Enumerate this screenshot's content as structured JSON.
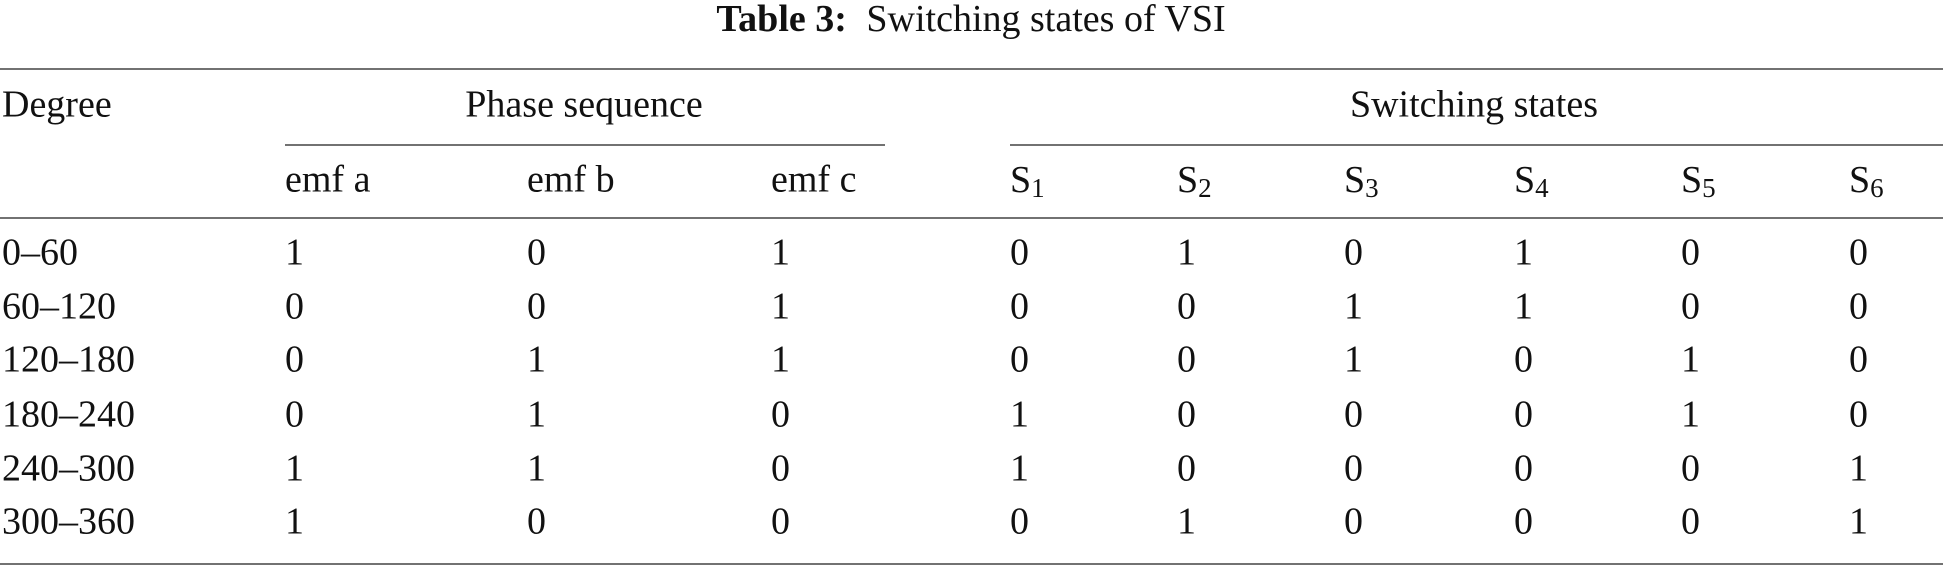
{
  "caption": {
    "label": "Table 3:",
    "text": "Switching states of VSI"
  },
  "table": {
    "group_headers": {
      "degree": "Degree",
      "phase": "Phase sequence",
      "switching": "Switching states"
    },
    "sub_headers": [
      {
        "text": "emf a"
      },
      {
        "text": "emf b"
      },
      {
        "text": "emf c"
      },
      {
        "letter": "S",
        "sub": "1"
      },
      {
        "letter": "S",
        "sub": "2"
      },
      {
        "letter": "S",
        "sub": "3"
      },
      {
        "letter": "S",
        "sub": "4"
      },
      {
        "letter": "S",
        "sub": "5"
      },
      {
        "letter": "S",
        "sub": "6"
      }
    ],
    "rows": [
      [
        "0–60",
        "1",
        "0",
        "1",
        "0",
        "1",
        "0",
        "1",
        "0",
        "0"
      ],
      [
        "60–120",
        "0",
        "0",
        "1",
        "0",
        "0",
        "1",
        "1",
        "0",
        "0"
      ],
      [
        "120–180",
        "0",
        "1",
        "1",
        "0",
        "0",
        "1",
        "0",
        "1",
        "0"
      ],
      [
        "180–240",
        "0",
        "1",
        "0",
        "1",
        "0",
        "0",
        "0",
        "1",
        "0"
      ],
      [
        "240–300",
        "1",
        "1",
        "0",
        "1",
        "0",
        "0",
        "0",
        "0",
        "1"
      ],
      [
        "300–360",
        "1",
        "0",
        "0",
        "0",
        "1",
        "0",
        "0",
        "0",
        "1"
      ]
    ]
  }
}
